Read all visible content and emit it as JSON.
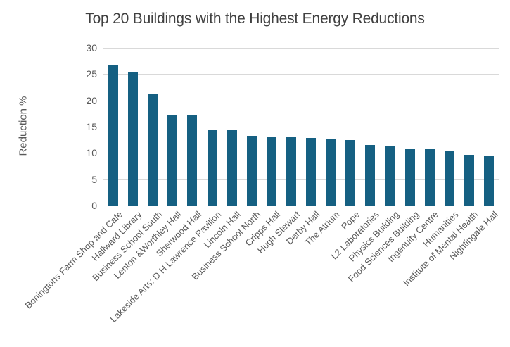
{
  "frame": {
    "background": "#ffffff",
    "border_color": "#d9d9d9"
  },
  "chart_data": {
    "type": "bar",
    "title": "Top 20 Buildings with the Highest Energy Reductions",
    "xlabel": "",
    "ylabel": "Reduction %",
    "categories": [
      "Boningtons Farm Shop and Café",
      "Hallward Library",
      "Business School South",
      "Lenton &Worthley Hall",
      "Sherwood Hall",
      "Lakeside Arts: D H Lawrence Pavilion",
      "Lincoln Hall",
      "Business School North",
      "Cripps Hall",
      "Hugh Stewart",
      "Derby Hall",
      "The Atrium",
      "Pope",
      "L2 Laboratories",
      "Physics Building",
      "Food Sciences Building",
      "Ingenuity Centre",
      "Humanities",
      "Institute of Mental Health",
      "Nightingale Hall"
    ],
    "values": [
      26.7,
      25.4,
      21.3,
      17.3,
      17.1,
      14.5,
      14.5,
      13.2,
      13.0,
      13.0,
      12.8,
      12.6,
      12.5,
      11.5,
      11.4,
      10.8,
      10.7,
      10.4,
      9.7,
      9.4
    ],
    "ylim": [
      0,
      30
    ],
    "yticks": [
      0,
      5,
      10,
      15,
      20,
      25,
      30
    ],
    "grid": true,
    "legend": false,
    "x_tick_rotation_deg": -45,
    "bar_color": "#156082",
    "title_color": "#404040",
    "axis_text_color": "#595959",
    "gridline_color": "#d9d9d9",
    "axis_line_color": "#c6c6c6"
  }
}
